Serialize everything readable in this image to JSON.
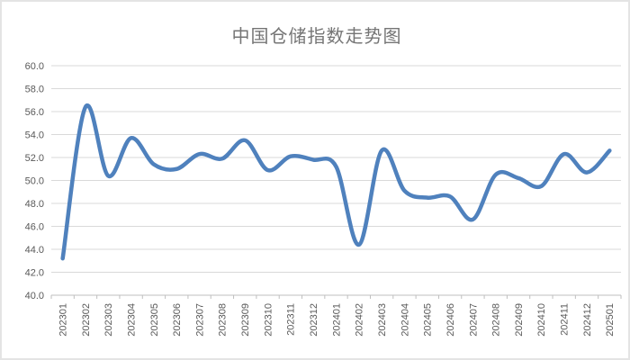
{
  "chart_data": {
    "type": "line",
    "title": "中国仓储指数走势图",
    "categories": [
      "202301",
      "202302",
      "202303",
      "202304",
      "202305",
      "202306",
      "202307",
      "202308",
      "202309",
      "202310",
      "202311",
      "202312",
      "202401",
      "202402",
      "202403",
      "202404",
      "202405",
      "202406",
      "202407",
      "202408",
      "202409",
      "202410",
      "202411",
      "202412",
      "202501"
    ],
    "values": [
      43.2,
      56.4,
      50.4,
      53.7,
      51.4,
      51.0,
      52.3,
      51.9,
      53.5,
      50.9,
      52.1,
      51.8,
      51.2,
      44.4,
      52.6,
      49.1,
      48.5,
      48.6,
      46.6,
      50.5,
      50.2,
      49.5,
      52.3,
      50.7,
      52.6
    ],
    "xlabel": "",
    "ylabel": "",
    "ylim": [
      40.0,
      60.0
    ],
    "ytick_step": 2.0,
    "ytick_decimals": 1,
    "x_labels_rotation": -90,
    "grid": true,
    "legend": "none",
    "smooth": true,
    "line_color": "#4F81BD",
    "gridline_color": "#D9D9D9",
    "axis_line_color": "#BFBFBF",
    "axis_text_color": "#595959",
    "title_color": "#757575"
  }
}
